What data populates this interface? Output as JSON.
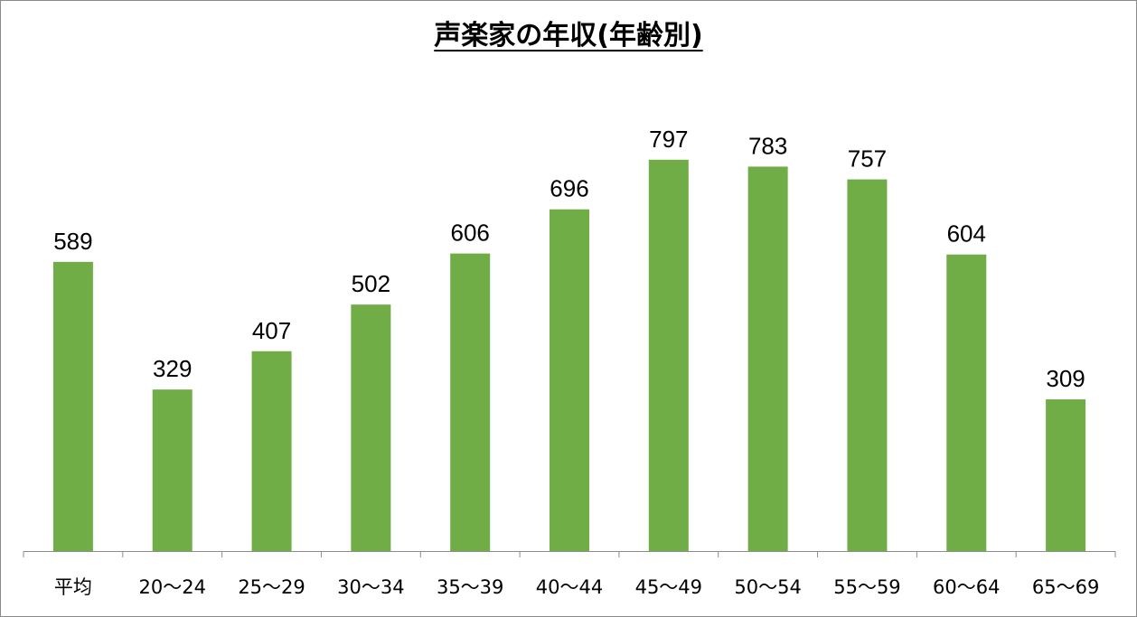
{
  "chart_data": {
    "type": "bar",
    "title": "声楽家の年収(年齢別)",
    "categories": [
      "平均",
      "20〜24",
      "25〜29",
      "30〜34",
      "35〜39",
      "40〜44",
      "45〜49",
      "50〜54",
      "55〜59",
      "60〜64",
      "65〜69"
    ],
    "values": [
      589,
      329,
      407,
      502,
      606,
      696,
      797,
      783,
      757,
      604,
      309
    ],
    "xlabel": "",
    "ylabel": "",
    "ylim": [
      0,
      1000
    ],
    "grid": false,
    "legend": "none",
    "bar_color": "#70ad47",
    "axis_color": "#8c8c8c"
  }
}
